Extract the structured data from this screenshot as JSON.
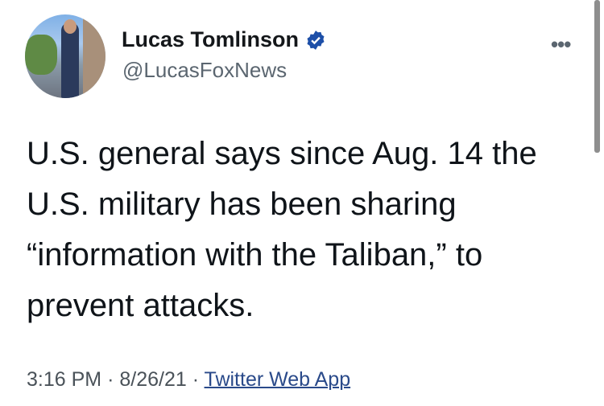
{
  "author": {
    "name": "Lucas Tomlinson",
    "handle": "@LucasFoxNews",
    "verified": true
  },
  "tweet": {
    "lines": [
      "U.S. general says since Aug. 14 the",
      "U.S. military has been sharing",
      "“information with the Taliban,” to",
      "prevent attacks."
    ],
    "time": "3:16 PM",
    "date": "8/26/21",
    "separator": "·",
    "source": "Twitter Web App"
  },
  "icons": {
    "more": "more-horizontal-icon",
    "verified": "verified-badge-icon"
  },
  "colors": {
    "verified": "#1d4fa8",
    "link": "#2a4a8a"
  }
}
